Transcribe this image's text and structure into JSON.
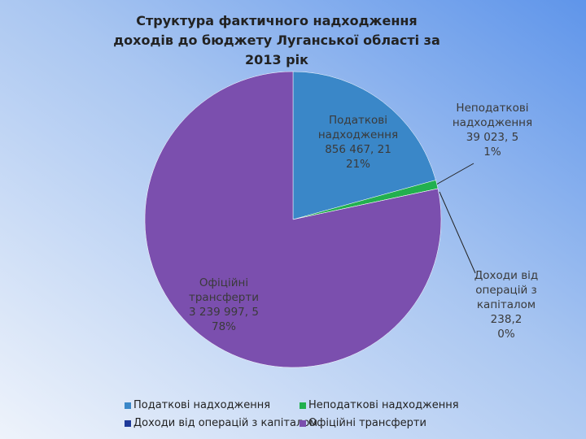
{
  "chart_data": {
    "type": "pie",
    "title": "Структура фактичного надходження доходів до бюджету Луганської області за 2013 рік",
    "categories": [
      "Податкові надходження",
      "Неподаткові надходження",
      "Доходи від операцій з капіталом",
      "Офіційні трансферти"
    ],
    "values": [
      856467.21,
      39023.5,
      238.2,
      3239997.5
    ],
    "value_labels": [
      "856 467, 21",
      "39 023, 5",
      "238,2",
      "3 239 997, 5"
    ],
    "percent_labels": [
      "21%",
      "1%",
      "0%",
      "78%"
    ],
    "colors": [
      "#3a87c8",
      "#22b04e",
      "#1f3a9a",
      "#7b4fae"
    ],
    "legend": "bottom"
  }
}
